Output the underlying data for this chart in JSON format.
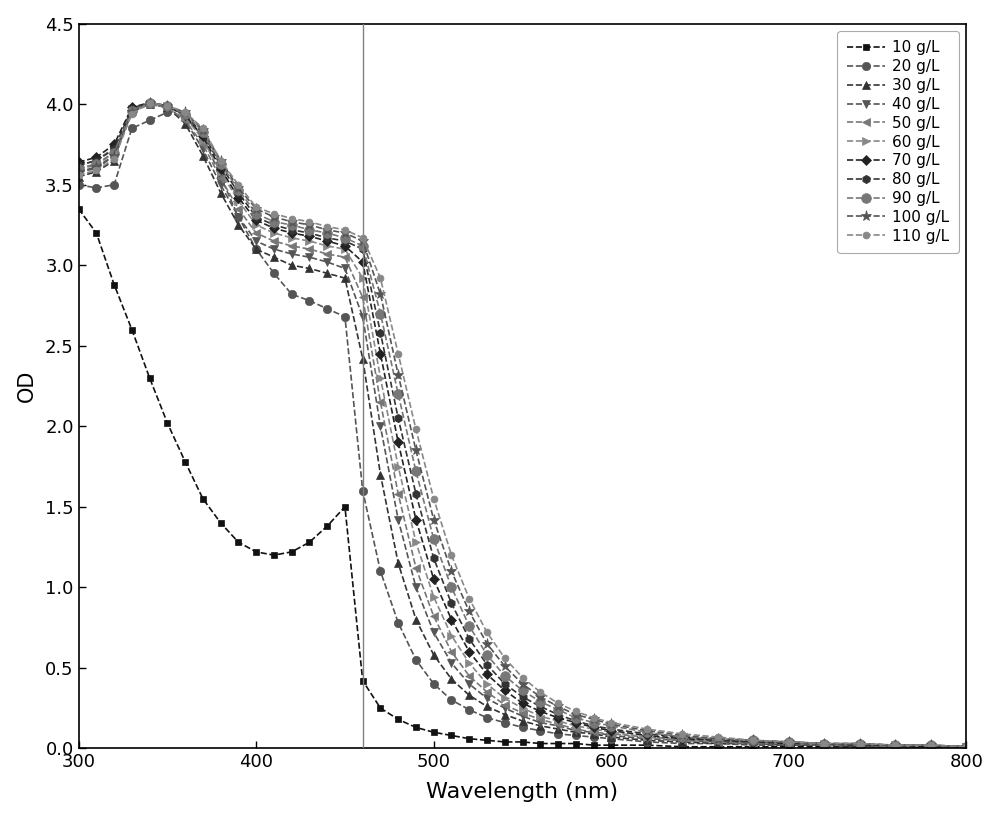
{
  "title": "",
  "xlabel": "Wavelength (nm)",
  "ylabel": "OD",
  "xlim": [
    300,
    800
  ],
  "ylim": [
    0.0,
    4.5
  ],
  "vline_x": 460,
  "yticks": [
    0.0,
    0.5,
    1.0,
    1.5,
    2.0,
    2.5,
    3.0,
    3.5,
    4.0,
    4.5
  ],
  "xticks": [
    300,
    400,
    500,
    600,
    700,
    800
  ],
  "background": "#f2f2f2",
  "series": [
    {
      "label": "10 g/L",
      "color": "#111111",
      "marker": "s",
      "markersize": 5,
      "wavelengths": [
        300,
        310,
        320,
        330,
        340,
        350,
        360,
        370,
        380,
        390,
        400,
        410,
        420,
        430,
        440,
        450,
        460,
        470,
        480,
        490,
        500,
        510,
        520,
        530,
        540,
        550,
        560,
        570,
        580,
        590,
        600,
        620,
        640,
        660,
        680,
        700,
        720,
        740,
        760,
        780,
        800
      ],
      "od": [
        3.35,
        3.2,
        2.88,
        2.6,
        2.3,
        2.02,
        1.78,
        1.55,
        1.4,
        1.28,
        1.22,
        1.2,
        1.22,
        1.28,
        1.38,
        1.5,
        0.42,
        0.25,
        0.18,
        0.13,
        0.1,
        0.08,
        0.06,
        0.05,
        0.04,
        0.04,
        0.03,
        0.03,
        0.03,
        0.02,
        0.02,
        0.02,
        0.01,
        0.01,
        0.01,
        0.01,
        0.01,
        0.01,
        0.01,
        0.01,
        0.01
      ]
    },
    {
      "label": "20 g/L",
      "color": "#555555",
      "marker": "o",
      "markersize": 6,
      "wavelengths": [
        300,
        310,
        320,
        330,
        340,
        350,
        360,
        370,
        380,
        390,
        400,
        410,
        420,
        430,
        440,
        450,
        460,
        470,
        480,
        490,
        500,
        510,
        520,
        530,
        540,
        550,
        560,
        570,
        580,
        590,
        600,
        620,
        640,
        660,
        680,
        700,
        720,
        740,
        760,
        780,
        800
      ],
      "od": [
        3.5,
        3.48,
        3.5,
        3.85,
        3.9,
        3.95,
        3.92,
        3.8,
        3.55,
        3.3,
        3.1,
        2.95,
        2.82,
        2.78,
        2.73,
        2.68,
        1.6,
        1.1,
        0.78,
        0.55,
        0.4,
        0.3,
        0.24,
        0.19,
        0.16,
        0.13,
        0.11,
        0.09,
        0.08,
        0.07,
        0.06,
        0.04,
        0.03,
        0.03,
        0.02,
        0.02,
        0.02,
        0.01,
        0.01,
        0.01,
        0.01
      ]
    },
    {
      "label": "30 g/L",
      "color": "#333333",
      "marker": "^",
      "markersize": 6,
      "wavelengths": [
        300,
        310,
        320,
        330,
        340,
        350,
        360,
        370,
        380,
        390,
        400,
        410,
        420,
        430,
        440,
        450,
        460,
        470,
        480,
        490,
        500,
        510,
        520,
        530,
        540,
        550,
        560,
        570,
        580,
        590,
        600,
        620,
        640,
        660,
        680,
        700,
        720,
        740,
        760,
        780,
        800
      ],
      "od": [
        3.55,
        3.58,
        3.65,
        3.98,
        4.0,
        3.98,
        3.88,
        3.68,
        3.45,
        3.25,
        3.1,
        3.05,
        3.0,
        2.98,
        2.95,
        2.92,
        2.42,
        1.7,
        1.15,
        0.8,
        0.58,
        0.43,
        0.33,
        0.26,
        0.21,
        0.17,
        0.14,
        0.12,
        0.1,
        0.09,
        0.07,
        0.05,
        0.04,
        0.03,
        0.03,
        0.02,
        0.02,
        0.01,
        0.01,
        0.01,
        0.01
      ]
    },
    {
      "label": "40 g/L",
      "color": "#555555",
      "marker": "v",
      "markersize": 6,
      "wavelengths": [
        300,
        310,
        320,
        330,
        340,
        350,
        360,
        370,
        380,
        390,
        400,
        410,
        420,
        430,
        440,
        450,
        460,
        470,
        480,
        490,
        500,
        510,
        520,
        530,
        540,
        550,
        560,
        570,
        580,
        590,
        600,
        620,
        640,
        660,
        680,
        700,
        720,
        740,
        760,
        780,
        800
      ],
      "od": [
        3.58,
        3.6,
        3.68,
        3.95,
        4.0,
        3.98,
        3.9,
        3.72,
        3.5,
        3.3,
        3.15,
        3.1,
        3.07,
        3.05,
        3.02,
        2.98,
        2.68,
        2.0,
        1.42,
        1.0,
        0.72,
        0.53,
        0.4,
        0.31,
        0.25,
        0.2,
        0.16,
        0.14,
        0.11,
        0.1,
        0.08,
        0.06,
        0.05,
        0.04,
        0.03,
        0.02,
        0.02,
        0.02,
        0.01,
        0.01,
        0.01
      ]
    },
    {
      "label": "50 g/L",
      "color": "#777777",
      "marker": "<",
      "markersize": 6,
      "wavelengths": [
        300,
        310,
        320,
        330,
        340,
        350,
        360,
        370,
        380,
        390,
        400,
        410,
        420,
        430,
        440,
        450,
        460,
        470,
        480,
        490,
        500,
        510,
        520,
        530,
        540,
        550,
        560,
        570,
        580,
        590,
        600,
        620,
        640,
        660,
        680,
        700,
        720,
        740,
        760,
        780,
        800
      ],
      "od": [
        3.6,
        3.62,
        3.7,
        3.96,
        4.0,
        3.98,
        3.9,
        3.75,
        3.54,
        3.35,
        3.2,
        3.15,
        3.12,
        3.1,
        3.07,
        3.05,
        2.8,
        2.15,
        1.58,
        1.12,
        0.82,
        0.6,
        0.45,
        0.35,
        0.27,
        0.22,
        0.18,
        0.15,
        0.12,
        0.1,
        0.09,
        0.07,
        0.05,
        0.04,
        0.03,
        0.03,
        0.02,
        0.02,
        0.01,
        0.01,
        0.01
      ]
    },
    {
      "label": "60 g/L",
      "color": "#888888",
      "marker": ">",
      "markersize": 6,
      "wavelengths": [
        300,
        310,
        320,
        330,
        340,
        350,
        360,
        370,
        380,
        390,
        400,
        410,
        420,
        430,
        440,
        450,
        460,
        470,
        480,
        490,
        500,
        510,
        520,
        530,
        540,
        550,
        560,
        570,
        580,
        590,
        600,
        620,
        640,
        660,
        680,
        700,
        720,
        740,
        760,
        780,
        800
      ],
      "od": [
        3.62,
        3.65,
        3.73,
        3.97,
        4.0,
        3.99,
        3.92,
        3.78,
        3.58,
        3.4,
        3.25,
        3.2,
        3.17,
        3.15,
        3.12,
        3.1,
        2.92,
        2.3,
        1.75,
        1.28,
        0.94,
        0.7,
        0.53,
        0.4,
        0.31,
        0.25,
        0.2,
        0.17,
        0.14,
        0.12,
        0.1,
        0.07,
        0.06,
        0.05,
        0.04,
        0.03,
        0.03,
        0.02,
        0.02,
        0.01,
        0.01
      ]
    },
    {
      "label": "70 g/L",
      "color": "#222222",
      "marker": "D",
      "markersize": 5,
      "wavelengths": [
        300,
        310,
        320,
        330,
        340,
        350,
        360,
        370,
        380,
        390,
        400,
        410,
        420,
        430,
        440,
        450,
        460,
        470,
        480,
        490,
        500,
        510,
        520,
        530,
        540,
        550,
        560,
        570,
        580,
        590,
        600,
        620,
        640,
        660,
        680,
        700,
        720,
        740,
        760,
        780,
        800
      ],
      "od": [
        3.64,
        3.67,
        3.75,
        3.98,
        4.01,
        3.99,
        3.93,
        3.8,
        3.6,
        3.42,
        3.28,
        3.23,
        3.2,
        3.18,
        3.15,
        3.12,
        3.02,
        2.45,
        1.9,
        1.42,
        1.05,
        0.8,
        0.6,
        0.46,
        0.36,
        0.28,
        0.23,
        0.19,
        0.16,
        0.13,
        0.11,
        0.08,
        0.06,
        0.05,
        0.04,
        0.03,
        0.03,
        0.02,
        0.02,
        0.01,
        0.01
      ]
    },
    {
      "label": "80 g/L",
      "color": "#333333",
      "marker": "h",
      "markersize": 6,
      "wavelengths": [
        300,
        310,
        320,
        330,
        340,
        350,
        360,
        370,
        380,
        390,
        400,
        410,
        420,
        430,
        440,
        450,
        460,
        470,
        480,
        490,
        500,
        510,
        520,
        530,
        540,
        550,
        560,
        570,
        580,
        590,
        600,
        620,
        640,
        660,
        680,
        700,
        720,
        740,
        760,
        780,
        800
      ],
      "od": [
        3.62,
        3.65,
        3.72,
        3.97,
        4.01,
        3.99,
        3.93,
        3.82,
        3.62,
        3.45,
        3.3,
        3.25,
        3.22,
        3.2,
        3.17,
        3.15,
        3.1,
        2.58,
        2.05,
        1.58,
        1.18,
        0.9,
        0.68,
        0.52,
        0.4,
        0.32,
        0.26,
        0.21,
        0.17,
        0.14,
        0.12,
        0.09,
        0.07,
        0.05,
        0.04,
        0.04,
        0.03,
        0.02,
        0.02,
        0.02,
        0.01
      ]
    },
    {
      "label": "90 g/L",
      "color": "#777777",
      "marker": "o",
      "markersize": 7,
      "wavelengths": [
        300,
        310,
        320,
        330,
        340,
        350,
        360,
        370,
        380,
        390,
        400,
        410,
        420,
        430,
        440,
        450,
        460,
        470,
        480,
        490,
        500,
        510,
        520,
        530,
        540,
        550,
        560,
        570,
        580,
        590,
        600,
        620,
        640,
        660,
        680,
        700,
        720,
        740,
        760,
        780,
        800
      ],
      "od": [
        3.6,
        3.63,
        3.7,
        3.96,
        4.01,
        3.99,
        3.94,
        3.83,
        3.63,
        3.47,
        3.32,
        3.27,
        3.25,
        3.22,
        3.2,
        3.17,
        3.12,
        2.7,
        2.2,
        1.72,
        1.3,
        1.0,
        0.76,
        0.58,
        0.45,
        0.36,
        0.29,
        0.24,
        0.19,
        0.16,
        0.14,
        0.1,
        0.07,
        0.06,
        0.05,
        0.04,
        0.03,
        0.03,
        0.02,
        0.02,
        0.01
      ]
    },
    {
      "label": "100 g/L",
      "color": "#555555",
      "marker": "*",
      "markersize": 8,
      "wavelengths": [
        300,
        310,
        320,
        330,
        340,
        350,
        360,
        370,
        380,
        390,
        400,
        410,
        420,
        430,
        440,
        450,
        460,
        470,
        480,
        490,
        500,
        510,
        520,
        530,
        540,
        550,
        560,
        570,
        580,
        590,
        600,
        620,
        640,
        660,
        680,
        700,
        720,
        740,
        760,
        780,
        800
      ],
      "od": [
        3.58,
        3.61,
        3.68,
        3.95,
        4.01,
        3.99,
        3.95,
        3.84,
        3.65,
        3.48,
        3.35,
        3.3,
        3.27,
        3.25,
        3.22,
        3.2,
        3.15,
        2.82,
        2.32,
        1.85,
        1.42,
        1.1,
        0.85,
        0.65,
        0.51,
        0.4,
        0.32,
        0.26,
        0.21,
        0.18,
        0.15,
        0.11,
        0.08,
        0.06,
        0.05,
        0.04,
        0.03,
        0.03,
        0.02,
        0.02,
        0.01
      ]
    },
    {
      "label": "110 g/L",
      "color": "#888888",
      "marker": "o",
      "markersize": 5,
      "wavelengths": [
        300,
        310,
        320,
        330,
        340,
        350,
        360,
        370,
        380,
        390,
        400,
        410,
        420,
        430,
        440,
        450,
        460,
        470,
        480,
        490,
        500,
        510,
        520,
        530,
        540,
        550,
        560,
        570,
        580,
        590,
        600,
        620,
        640,
        660,
        680,
        700,
        720,
        740,
        760,
        780,
        800
      ],
      "od": [
        3.56,
        3.59,
        3.66,
        3.94,
        4.01,
        3.99,
        3.95,
        3.85,
        3.65,
        3.5,
        3.36,
        3.32,
        3.29,
        3.27,
        3.24,
        3.22,
        3.17,
        2.92,
        2.45,
        1.98,
        1.55,
        1.2,
        0.93,
        0.72,
        0.56,
        0.44,
        0.35,
        0.28,
        0.23,
        0.19,
        0.16,
        0.12,
        0.09,
        0.07,
        0.05,
        0.04,
        0.03,
        0.03,
        0.02,
        0.02,
        0.01
      ]
    }
  ]
}
